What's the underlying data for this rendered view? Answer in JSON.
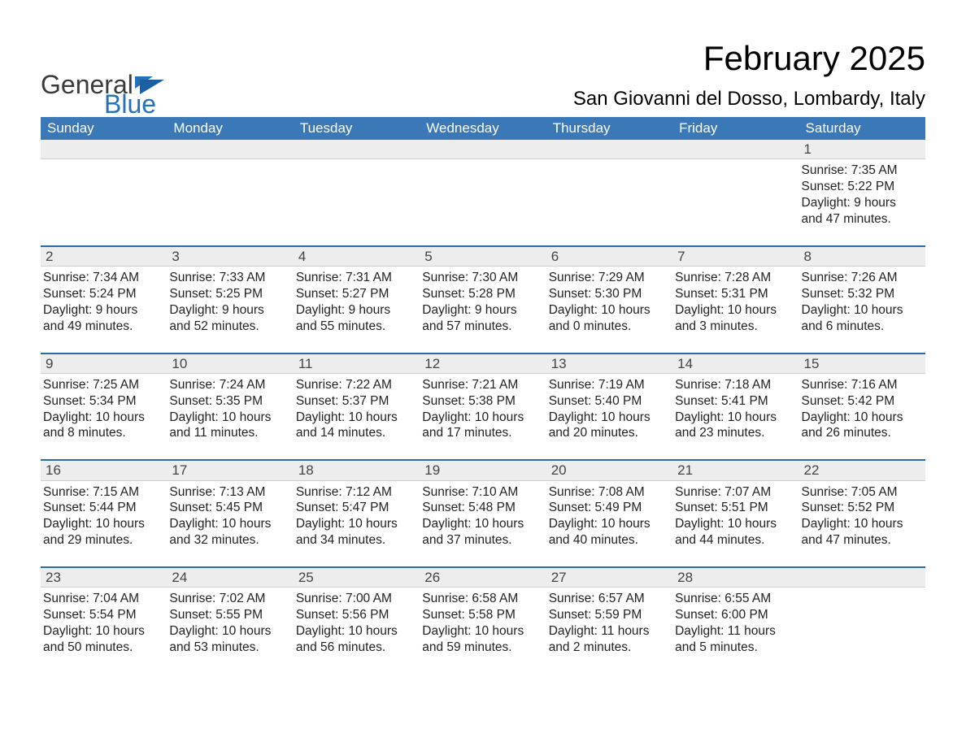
{
  "logo": {
    "text1": "General",
    "text2": "Blue"
  },
  "title": "February 2025",
  "location": "San Giovanni del Dosso, Lombardy, Italy",
  "colors": {
    "header_bg": "#3b78b8",
    "row_line": "#2d6aa8",
    "grey_row": "#ededed",
    "text": "#222222",
    "white": "#ffffff",
    "logo_accent": "#2570ba"
  },
  "day_headers": [
    "Sunday",
    "Monday",
    "Tuesday",
    "Wednesday",
    "Thursday",
    "Friday",
    "Saturday"
  ],
  "weeks": [
    [
      null,
      null,
      null,
      null,
      null,
      null,
      {
        "n": "1",
        "sr": "7:35 AM",
        "ss": "5:22 PM",
        "dl": "9 hours and 47 minutes."
      }
    ],
    [
      {
        "n": "2",
        "sr": "7:34 AM",
        "ss": "5:24 PM",
        "dl": "9 hours and 49 minutes."
      },
      {
        "n": "3",
        "sr": "7:33 AM",
        "ss": "5:25 PM",
        "dl": "9 hours and 52 minutes."
      },
      {
        "n": "4",
        "sr": "7:31 AM",
        "ss": "5:27 PM",
        "dl": "9 hours and 55 minutes."
      },
      {
        "n": "5",
        "sr": "7:30 AM",
        "ss": "5:28 PM",
        "dl": "9 hours and 57 minutes."
      },
      {
        "n": "6",
        "sr": "7:29 AM",
        "ss": "5:30 PM",
        "dl": "10 hours and 0 minutes."
      },
      {
        "n": "7",
        "sr": "7:28 AM",
        "ss": "5:31 PM",
        "dl": "10 hours and 3 minutes."
      },
      {
        "n": "8",
        "sr": "7:26 AM",
        "ss": "5:32 PM",
        "dl": "10 hours and 6 minutes."
      }
    ],
    [
      {
        "n": "9",
        "sr": "7:25 AM",
        "ss": "5:34 PM",
        "dl": "10 hours and 8 minutes."
      },
      {
        "n": "10",
        "sr": "7:24 AM",
        "ss": "5:35 PM",
        "dl": "10 hours and 11 minutes."
      },
      {
        "n": "11",
        "sr": "7:22 AM",
        "ss": "5:37 PM",
        "dl": "10 hours and 14 minutes."
      },
      {
        "n": "12",
        "sr": "7:21 AM",
        "ss": "5:38 PM",
        "dl": "10 hours and 17 minutes."
      },
      {
        "n": "13",
        "sr": "7:19 AM",
        "ss": "5:40 PM",
        "dl": "10 hours and 20 minutes."
      },
      {
        "n": "14",
        "sr": "7:18 AM",
        "ss": "5:41 PM",
        "dl": "10 hours and 23 minutes."
      },
      {
        "n": "15",
        "sr": "7:16 AM",
        "ss": "5:42 PM",
        "dl": "10 hours and 26 minutes."
      }
    ],
    [
      {
        "n": "16",
        "sr": "7:15 AM",
        "ss": "5:44 PM",
        "dl": "10 hours and 29 minutes."
      },
      {
        "n": "17",
        "sr": "7:13 AM",
        "ss": "5:45 PM",
        "dl": "10 hours and 32 minutes."
      },
      {
        "n": "18",
        "sr": "7:12 AM",
        "ss": "5:47 PM",
        "dl": "10 hours and 34 minutes."
      },
      {
        "n": "19",
        "sr": "7:10 AM",
        "ss": "5:48 PM",
        "dl": "10 hours and 37 minutes."
      },
      {
        "n": "20",
        "sr": "7:08 AM",
        "ss": "5:49 PM",
        "dl": "10 hours and 40 minutes."
      },
      {
        "n": "21",
        "sr": "7:07 AM",
        "ss": "5:51 PM",
        "dl": "10 hours and 44 minutes."
      },
      {
        "n": "22",
        "sr": "7:05 AM",
        "ss": "5:52 PM",
        "dl": "10 hours and 47 minutes."
      }
    ],
    [
      {
        "n": "23",
        "sr": "7:04 AM",
        "ss": "5:54 PM",
        "dl": "10 hours and 50 minutes."
      },
      {
        "n": "24",
        "sr": "7:02 AM",
        "ss": "5:55 PM",
        "dl": "10 hours and 53 minutes."
      },
      {
        "n": "25",
        "sr": "7:00 AM",
        "ss": "5:56 PM",
        "dl": "10 hours and 56 minutes."
      },
      {
        "n": "26",
        "sr": "6:58 AM",
        "ss": "5:58 PM",
        "dl": "10 hours and 59 minutes."
      },
      {
        "n": "27",
        "sr": "6:57 AM",
        "ss": "5:59 PM",
        "dl": "11 hours and 2 minutes."
      },
      {
        "n": "28",
        "sr": "6:55 AM",
        "ss": "6:00 PM",
        "dl": "11 hours and 5 minutes."
      },
      null
    ]
  ],
  "labels": {
    "sunrise": "Sunrise: ",
    "sunset": "Sunset: ",
    "daylight": "Daylight: "
  }
}
